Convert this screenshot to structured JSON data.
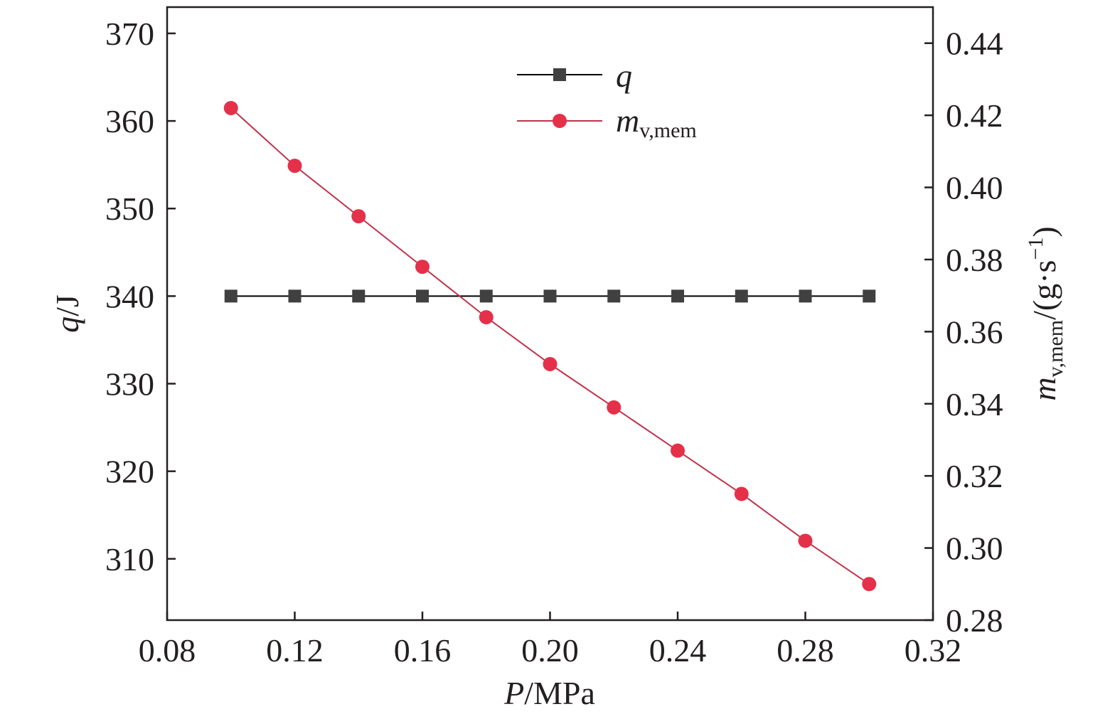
{
  "chart_data": {
    "type": "line",
    "x": [
      0.1,
      0.12,
      0.14,
      0.16,
      0.18,
      0.2,
      0.22,
      0.24,
      0.26,
      0.28,
      0.3
    ],
    "xlim": [
      0.08,
      0.32
    ],
    "xticks": [
      "0.08",
      "0.12",
      "0.16",
      "0.20",
      "0.24",
      "0.28",
      "0.32"
    ],
    "xlabel": {
      "italic": "P",
      "rest": "/MPa"
    },
    "left_axis": {
      "ylim": [
        303,
        373
      ],
      "ticks": [
        "310",
        "320",
        "330",
        "340",
        "350",
        "360",
        "370"
      ],
      "label": {
        "italic": "q",
        "rest": "/J"
      }
    },
    "right_axis": {
      "ylim": [
        0.28,
        0.45
      ],
      "ticks": [
        "0.28",
        "0.30",
        "0.32",
        "0.34",
        "0.36",
        "0.38",
        "0.40",
        "0.42",
        "0.44"
      ],
      "label": {
        "italic": "m",
        "sub": "v,mem",
        "mid": "/(g·s",
        "sup": "−1",
        "end": ")"
      }
    },
    "series": [
      {
        "name": "q",
        "axis": "left",
        "marker": "square",
        "color": "#000000",
        "marker_color": "#404040",
        "values": [
          340,
          340,
          340,
          340,
          340,
          340,
          340,
          340,
          340,
          340,
          340
        ]
      },
      {
        "name": "m_v,mem",
        "legend": {
          "italic": "m",
          "sub": "v,mem"
        },
        "axis": "right",
        "marker": "circle",
        "color": "#c0334a",
        "marker_color": "#e5304a",
        "values": [
          0.422,
          0.406,
          0.392,
          0.378,
          0.364,
          0.351,
          0.339,
          0.327,
          0.315,
          0.302,
          0.29
        ]
      }
    ],
    "legend_position": "top-center",
    "grid": false
  }
}
